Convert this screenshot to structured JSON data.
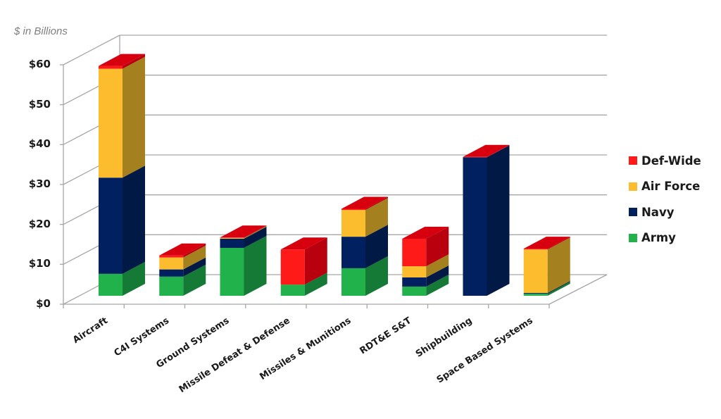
{
  "chart_data": {
    "type": "bar",
    "stacked": true,
    "style": "3d-column",
    "title": "",
    "unit_label": "$ in Billions",
    "xlabel": "",
    "ylabel": "$ in Billions",
    "ylim": [
      0,
      60
    ],
    "yticks": [
      "$0",
      "$10",
      "$20",
      "$30",
      "$40",
      "$50",
      "$60"
    ],
    "grid": true,
    "legend_position": "right",
    "categories": [
      "Aircraft",
      "C4I Systems",
      "Ground Systems",
      "Missile Defeat & Defense",
      "Missiles & Munitions",
      "RDT&E S&T",
      "Shipbuilding",
      "Space Based Systems"
    ],
    "series": [
      {
        "name": "Army",
        "color": "#21b24b",
        "side": "#147a35",
        "values": [
          5.5,
          4.8,
          12.0,
          2.8,
          6.9,
          2.3,
          0.0,
          0.5
        ]
      },
      {
        "name": "Navy",
        "color": "#002060",
        "side": "#001a45",
        "values": [
          24.1,
          1.8,
          2.3,
          0.0,
          7.9,
          2.3,
          34.7,
          0.2
        ]
      },
      {
        "name": "Air Force",
        "color": "#fbbc2e",
        "side": "#a5801e",
        "values": [
          27.3,
          3.0,
          0.2,
          0.0,
          6.7,
          2.8,
          0.0,
          10.9
        ]
      },
      {
        "name": "Def-Wide",
        "color": "#ff1a1a",
        "side": "#b8000f",
        "values": [
          0.7,
          0.5,
          0.1,
          8.8,
          0.3,
          6.9,
          0.1,
          0.2
        ]
      }
    ]
  },
  "legend": [
    {
      "label": "Def-Wide",
      "color": "#ff1a1a"
    },
    {
      "label": "Air Force",
      "color": "#fbbc2e"
    },
    {
      "label": "Navy",
      "color": "#002060"
    },
    {
      "label": "Army",
      "color": "#21b24b"
    }
  ]
}
